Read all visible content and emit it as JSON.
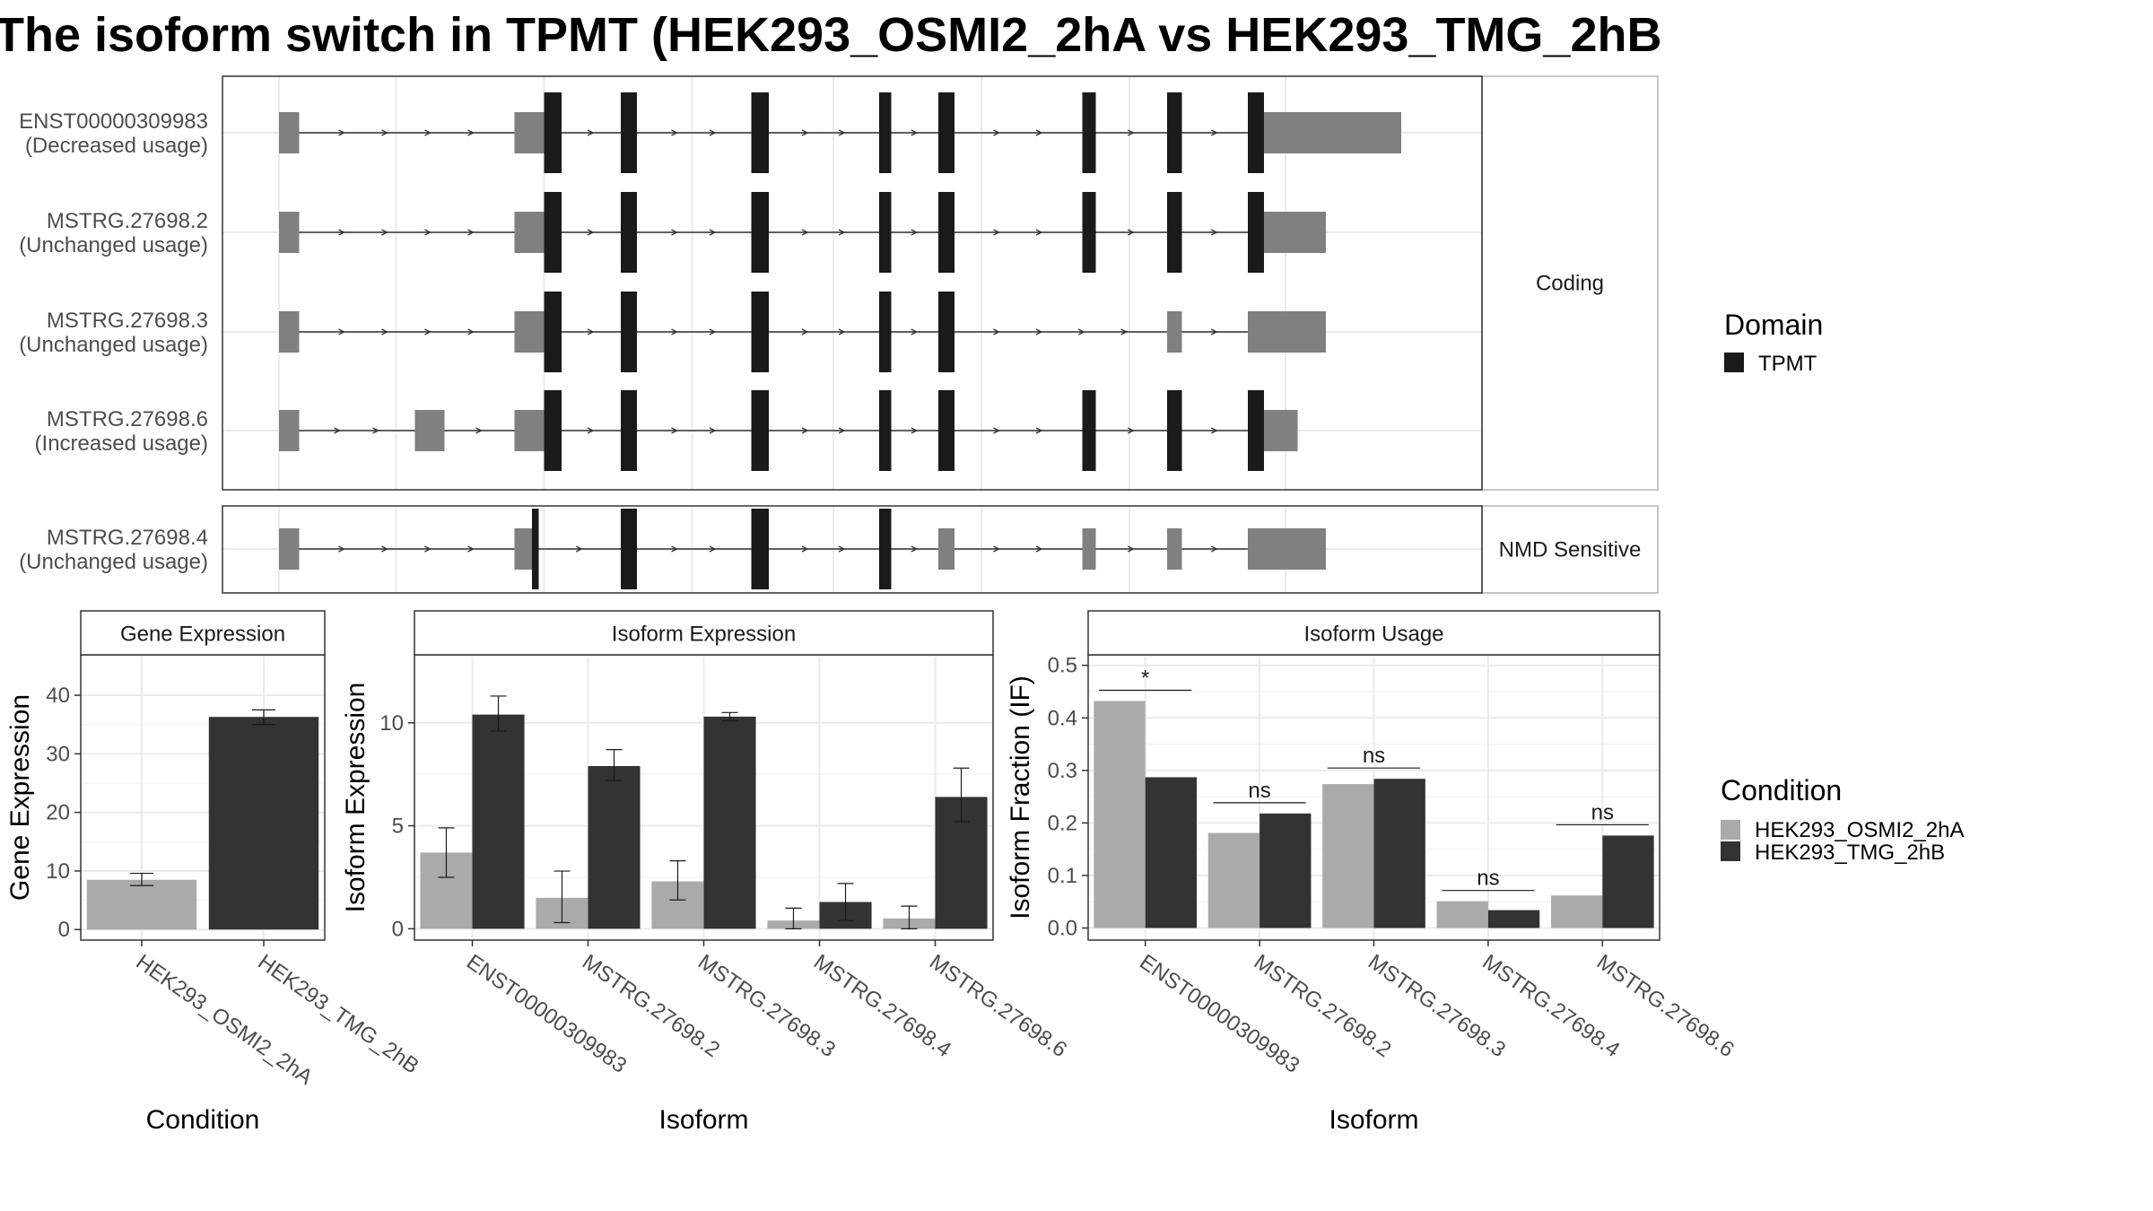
{
  "title": "The isoform switch in TPMT (HEK293_OSMI2_2hA vs HEK293_TMG_2hB",
  "colors": {
    "utr": "#808080",
    "cds": "#1a1a1a",
    "cond1": "#aaaaaa",
    "cond2": "#333333",
    "grid": "#ebebeb",
    "panel_border": "#333333",
    "strip_border": "#b3b3b3"
  },
  "chart_data": [
    {
      "type": "gene-structure",
      "panels": [
        {
          "strip": "Coding",
          "transcripts": [
            {
              "id": "ENST00000309983",
              "usage": "(Decreased usage)",
              "exons": [
                [
                  0,
                  15,
                  "utr"
                ],
                [
                  175,
                  197,
                  "utr"
                ],
                [
                  197,
                  210,
                  "cds"
                ],
                [
                  254,
                  266,
                  "cds"
                ],
                [
                  351,
                  364,
                  "cds"
                ],
                [
                  446,
                  455,
                  "cds"
                ],
                [
                  490,
                  502,
                  "cds"
                ],
                [
                  597,
                  607,
                  "cds"
                ],
                [
                  660,
                  671,
                  "cds"
                ],
                [
                  720,
                  732,
                  "cds"
                ],
                [
                  732,
                  834,
                  "utr"
                ]
              ]
            },
            {
              "id": "MSTRG.27698.2",
              "usage": "(Unchanged usage)",
              "exons": [
                [
                  0,
                  15,
                  "utr"
                ],
                [
                  175,
                  197,
                  "utr"
                ],
                [
                  197,
                  210,
                  "cds"
                ],
                [
                  254,
                  266,
                  "cds"
                ],
                [
                  351,
                  364,
                  "cds"
                ],
                [
                  446,
                  455,
                  "cds"
                ],
                [
                  490,
                  502,
                  "cds"
                ],
                [
                  597,
                  607,
                  "cds"
                ],
                [
                  660,
                  671,
                  "cds"
                ],
                [
                  720,
                  732,
                  "cds"
                ],
                [
                  732,
                  778,
                  "utr"
                ]
              ]
            },
            {
              "id": "MSTRG.27698.3",
              "usage": "(Unchanged usage)",
              "exons": [
                [
                  0,
                  15,
                  "utr"
                ],
                [
                  175,
                  197,
                  "utr"
                ],
                [
                  197,
                  210,
                  "cds"
                ],
                [
                  254,
                  266,
                  "cds"
                ],
                [
                  351,
                  364,
                  "cds"
                ],
                [
                  446,
                  455,
                  "cds"
                ],
                [
                  490,
                  502,
                  "cds"
                ],
                [
                  660,
                  671,
                  "utr"
                ],
                [
                  720,
                  778,
                  "utr"
                ]
              ]
            },
            {
              "id": "MSTRG.27698.6",
              "usage": "(Increased usage)",
              "exons": [
                [
                  0,
                  15,
                  "utr"
                ],
                [
                  101,
                  123,
                  "utr"
                ],
                [
                  175,
                  197,
                  "utr"
                ],
                [
                  197,
                  210,
                  "cds"
                ],
                [
                  254,
                  266,
                  "cds"
                ],
                [
                  351,
                  364,
                  "cds"
                ],
                [
                  446,
                  455,
                  "cds"
                ],
                [
                  490,
                  502,
                  "cds"
                ],
                [
                  597,
                  607,
                  "cds"
                ],
                [
                  660,
                  671,
                  "cds"
                ],
                [
                  720,
                  732,
                  "cds"
                ],
                [
                  732,
                  757,
                  "utr"
                ]
              ]
            }
          ]
        },
        {
          "strip": "NMD Sensitive",
          "transcripts": [
            {
              "id": "MSTRG.27698.4",
              "usage": "(Unchanged usage)",
              "exons": [
                [
                  0,
                  15,
                  "utr"
                ],
                [
                  175,
                  188,
                  "utr"
                ],
                [
                  188,
                  193,
                  "cds"
                ],
                [
                  254,
                  266,
                  "cds"
                ],
                [
                  351,
                  364,
                  "cds"
                ],
                [
                  446,
                  455,
                  "cds"
                ],
                [
                  490,
                  502,
                  "utr"
                ],
                [
                  597,
                  607,
                  "utr"
                ],
                [
                  660,
                  671,
                  "utr"
                ],
                [
                  720,
                  778,
                  "utr"
                ]
              ]
            }
          ]
        }
      ],
      "legend": {
        "title": "Domain",
        "entries": [
          "TPMT"
        ]
      }
    },
    {
      "type": "bar",
      "strip": "Gene Expression",
      "xlabel": "Condition",
      "ylabel": "Gene Expression",
      "categories": [
        "HEK293_OSMI2_2hA",
        "HEK293_TMG_2hB"
      ],
      "values": [
        8.5,
        36.3
      ],
      "errors": [
        [
          7.5,
          9.6
        ],
        [
          35.0,
          37.5
        ]
      ],
      "ylim": [
        -1.8,
        46.9
      ],
      "yticks": [
        0,
        10,
        20,
        30,
        40
      ]
    },
    {
      "type": "bar",
      "strip": "Isoform Expression",
      "xlabel": "Isoform",
      "ylabel": "Isoform Expression",
      "categories": [
        "ENST00000309983",
        "MSTRG.27698.2",
        "MSTRG.27698.3",
        "MSTRG.27698.4",
        "MSTRG.27698.6"
      ],
      "series": [
        {
          "name": "HEK293_OSMI2_2hA",
          "values": [
            3.7,
            1.5,
            2.3,
            0.4,
            0.5
          ],
          "errors": [
            [
              2.5,
              4.9
            ],
            [
              0.3,
              2.8
            ],
            [
              1.4,
              3.3
            ],
            [
              0.0,
              1.0
            ],
            [
              0.0,
              1.1
            ]
          ]
        },
        {
          "name": "HEK293_TMG_2hB",
          "values": [
            10.4,
            7.9,
            10.3,
            1.3,
            6.4
          ],
          "errors": [
            [
              9.6,
              11.3
            ],
            [
              7.2,
              8.7
            ],
            [
              10.1,
              10.5
            ],
            [
              0.4,
              2.2
            ],
            [
              5.2,
              7.8
            ]
          ]
        }
      ],
      "ylim": [
        -0.55,
        13.3
      ],
      "yticks": [
        0,
        5,
        10
      ]
    },
    {
      "type": "bar",
      "strip": "Isoform Usage",
      "xlabel": "Isoform",
      "ylabel": "Isoform Fraction (IF)",
      "categories": [
        "ENST00000309983",
        "MSTRG.27698.2",
        "MSTRG.27698.3",
        "MSTRG.27698.4",
        "MSTRG.27698.6"
      ],
      "series": [
        {
          "name": "HEK293_OSMI2_2hA",
          "values": [
            0.432,
            0.181,
            0.274,
            0.051,
            0.062
          ]
        },
        {
          "name": "HEK293_TMG_2hB",
          "values": [
            0.287,
            0.218,
            0.284,
            0.034,
            0.176
          ]
        }
      ],
      "significance": [
        "*",
        "ns",
        "ns",
        "ns",
        "ns"
      ],
      "ylim": [
        -0.023,
        0.52
      ],
      "yticks": [
        0.0,
        0.1,
        0.2,
        0.3,
        0.4,
        0.5
      ],
      "ytick_labels": [
        "0.0",
        "0.1",
        "0.2",
        "0.3",
        "0.4",
        "0.5"
      ]
    }
  ],
  "legend_condition": {
    "title": "Condition",
    "entries": [
      "HEK293_OSMI2_2hA",
      "HEK293_TMG_2hB"
    ]
  }
}
